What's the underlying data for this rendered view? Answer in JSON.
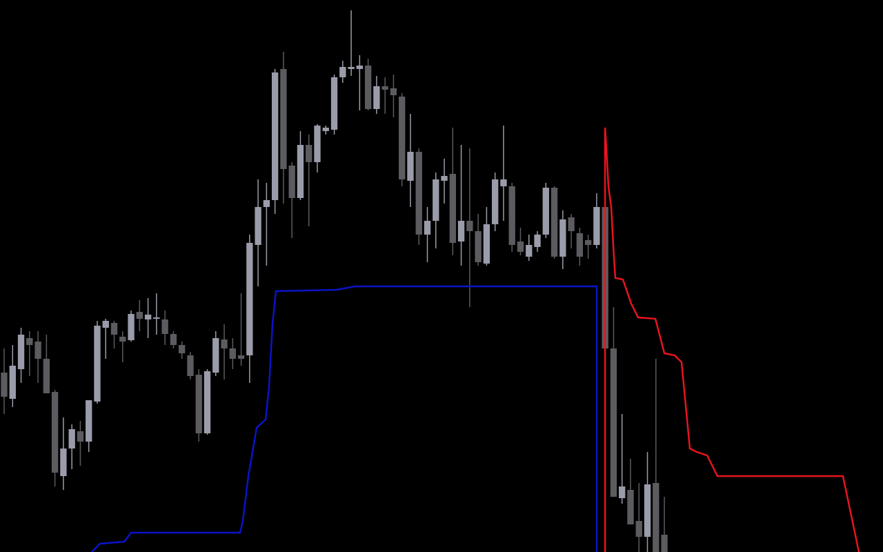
{
  "chart_data": {
    "type": "candlestick",
    "xlim": [
      -0.49,
      103.83
    ],
    "ylim": [
      0,
      800
    ],
    "up_color": "#9a9caa",
    "down_color": "#5c5c60",
    "x": [
      0,
      1,
      2,
      3,
      4,
      5,
      6,
      7,
      8,
      9,
      10,
      11,
      12,
      13,
      14,
      15,
      16,
      17,
      18,
      19,
      20,
      21,
      22,
      23,
      24,
      25,
      26,
      27,
      28,
      29,
      30,
      31,
      32,
      33,
      34,
      35,
      36,
      37,
      38,
      39,
      40,
      41,
      42,
      43,
      44,
      45,
      46,
      47,
      48,
      49,
      50,
      51,
      52,
      53,
      54,
      55,
      56,
      57,
      58,
      59,
      60,
      61,
      62,
      63,
      64,
      65,
      66,
      67,
      68,
      69,
      70,
      71,
      72,
      73,
      74,
      75,
      76,
      77,
      78
    ],
    "open": [
      260,
      222,
      265,
      310,
      305,
      280,
      232,
      110,
      150,
      175,
      160,
      218,
      325,
      332,
      312,
      307,
      348,
      337,
      338,
      337,
      316,
      300,
      285,
      257,
      172,
      260,
      308,
      295,
      285,
      285,
      445,
      500,
      510,
      700,
      560,
      513,
      590,
      565,
      610,
      612,
      688,
      700,
      700,
      705,
      642,
      675,
      672,
      660,
      538,
      580,
      460,
      480,
      538,
      548,
      450,
      480,
      465,
      418,
      475,
      530,
      530,
      450,
      428,
      442,
      460,
      528,
      428,
      485,
      462,
      452,
      445,
      500,
      295,
      78,
      90,
      45,
      22,
      100,
      25
    ],
    "high": [
      295,
      300,
      325,
      320,
      320,
      315,
      235,
      195,
      185,
      190,
      220,
      335,
      338,
      335,
      320,
      350,
      365,
      368,
      375,
      350,
      320,
      305,
      290,
      265,
      265,
      320,
      330,
      310,
      375,
      460,
      540,
      535,
      700,
      725,
      565,
      610,
      605,
      620,
      618,
      692,
      712,
      785,
      720,
      715,
      690,
      688,
      692,
      665,
      635,
      585,
      500,
      550,
      570,
      615,
      590,
      585,
      490,
      500,
      550,
      618,
      535,
      470,
      460,
      465,
      535,
      530,
      495,
      490,
      470,
      460,
      520,
      505,
      355,
      200,
      135,
      100,
      145,
      280,
      80
    ],
    "low": [
      200,
      210,
      245,
      255,
      245,
      230,
      95,
      90,
      120,
      125,
      145,
      215,
      280,
      295,
      275,
      305,
      320,
      310,
      315,
      300,
      295,
      280,
      250,
      160,
      170,
      255,
      250,
      265,
      270,
      245,
      385,
      415,
      490,
      505,
      455,
      510,
      472,
      550,
      605,
      605,
      680,
      690,
      640,
      640,
      635,
      635,
      630,
      530,
      500,
      445,
      420,
      440,
      505,
      430,
      415,
      355,
      415,
      415,
      465,
      480,
      435,
      430,
      422,
      435,
      455,
      425,
      410,
      440,
      415,
      425,
      440,
      290,
      80,
      70,
      40,
      0,
      0,
      0,
      0
    ],
    "close": [
      225,
      270,
      315,
      300,
      280,
      230,
      115,
      150,
      178,
      160,
      220,
      328,
      335,
      315,
      305,
      345,
      338,
      344,
      340,
      316,
      300,
      288,
      255,
      172,
      262,
      310,
      295,
      280,
      280,
      448,
      500,
      510,
      695,
      555,
      513,
      590,
      565,
      618,
      615,
      688,
      703,
      703,
      705,
      642,
      675,
      670,
      662,
      540,
      580,
      460,
      480,
      540,
      545,
      448,
      480,
      465,
      420,
      475,
      540,
      540,
      445,
      435,
      445,
      460,
      528,
      428,
      482,
      465,
      428,
      445,
      500,
      295,
      80,
      95,
      40,
      22,
      98,
      0,
      0
    ],
    "lines": [
      {
        "color": "#0a14c8",
        "x": [
          10.35,
          11.33,
          14.18,
          15.0,
          27.87,
          28.2,
          28.85,
          29.83,
          30.89,
          31.3,
          31.7,
          32.11,
          39.28,
          41.48,
          70.01,
          70.01
        ],
        "values": [
          0,
          12,
          15,
          28,
          28,
          45,
          110,
          180,
          192,
          240,
          330,
          378,
          380,
          385,
          385,
          0
        ]
      },
      {
        "color": "#e8141e",
        "x": [
          70.99,
          70.99,
          71.15,
          71.39,
          71.72,
          72.05,
          72.21,
          73.1,
          74.08,
          74.9,
          76.94,
          78.0,
          79.22,
          80.03,
          81.01,
          81.82,
          83.05,
          84.27,
          99.1,
          100.98
        ],
        "values": [
          0,
          615,
          585,
          530,
          500,
          425,
          397,
          395,
          360,
          340,
          338,
          288,
          285,
          275,
          150,
          145,
          140,
          110,
          110,
          0
        ]
      }
    ]
  }
}
